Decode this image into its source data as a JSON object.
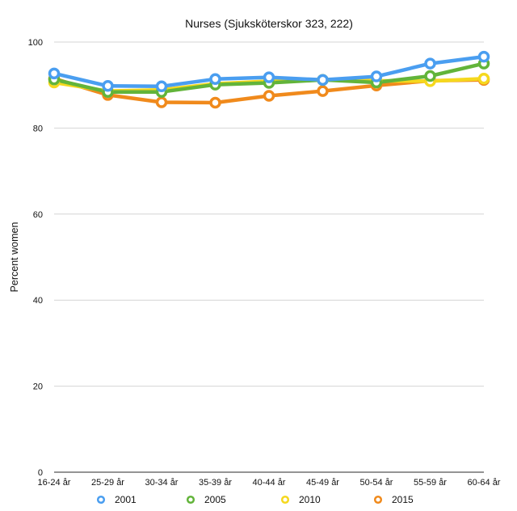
{
  "chart_data": {
    "type": "line",
    "title": "Nurses (Sjuksköterskor 323, 222)",
    "xlabel": "",
    "ylabel": "Percent women",
    "ylim": [
      0,
      100
    ],
    "yticks": [
      0,
      20,
      40,
      60,
      80,
      100
    ],
    "grid": true,
    "legend_position": "bottom",
    "categories": [
      "16-24 år",
      "25-29 år",
      "30-34 år",
      "35-39 år",
      "40-44 år",
      "45-49 år",
      "50-54 år",
      "55-59 år",
      "60-64 år"
    ],
    "series": [
      {
        "name": "2015",
        "color": "#F08A1C",
        "values": [
          91.5,
          87.7,
          86.0,
          85.9,
          87.5,
          88.6,
          89.9,
          91.0,
          91.2
        ]
      },
      {
        "name": "2010",
        "color": "#F5D81E",
        "values": [
          90.6,
          88.6,
          88.9,
          90.3,
          90.9,
          91.2,
          91.0,
          90.9,
          91.5
        ]
      },
      {
        "name": "2005",
        "color": "#62B43A",
        "values": [
          91.3,
          88.4,
          88.4,
          90.1,
          90.5,
          91.2,
          90.6,
          92.1,
          95.0
        ]
      },
      {
        "name": "2001",
        "color": "#4A9EF0",
        "values": [
          92.7,
          89.8,
          89.7,
          91.4,
          91.8,
          91.2,
          92.0,
          95.0,
          96.6
        ]
      }
    ],
    "legend_order": [
      "2001",
      "2005",
      "2010",
      "2015"
    ]
  }
}
